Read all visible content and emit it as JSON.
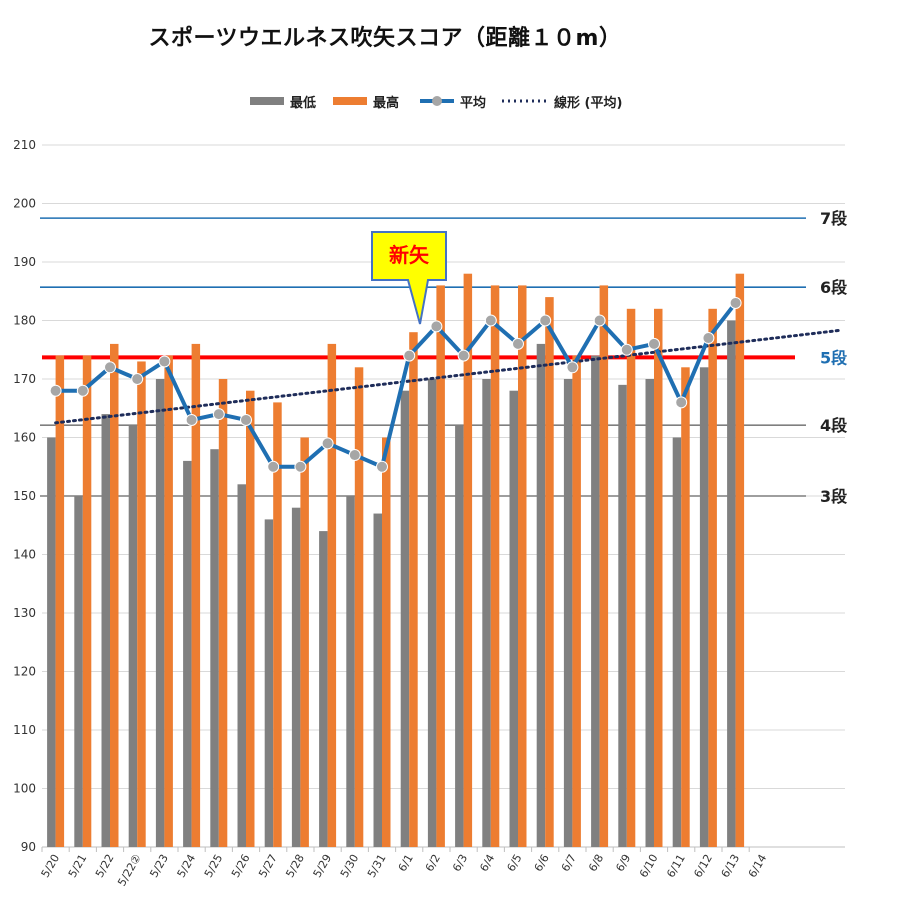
{
  "chart_data": {
    "type": "bar",
    "title": "スポーツウエルネス吹矢スコア（距離１０m）",
    "categories": [
      "5/20",
      "5/21",
      "5/22",
      "5/22②",
      "5/23",
      "5/24",
      "5/25",
      "5/26",
      "5/27",
      "5/28",
      "5/29",
      "5/30",
      "5/31",
      "6/1",
      "6/2",
      "6/3",
      "6/4",
      "6/5",
      "6/6",
      "6/7",
      "6/8",
      "6/9",
      "6/10",
      "6/11",
      "6/12",
      "6/13",
      "6/14"
    ],
    "ylim": [
      90,
      210
    ],
    "yticks": [
      90,
      100,
      110,
      120,
      130,
      140,
      150,
      160,
      170,
      180,
      190,
      200,
      210
    ],
    "grid": true,
    "legend_position": "top",
    "series": [
      {
        "name": "最低",
        "kind": "bar",
        "color": "#808080",
        "values": [
          160,
          150,
          164,
          162,
          170,
          156,
          158,
          152,
          146,
          148,
          144,
          150,
          147,
          168,
          170,
          162,
          170,
          168,
          176,
          170,
          174,
          169,
          170,
          160,
          172,
          180,
          null
        ]
      },
      {
        "name": "最高",
        "kind": "bar",
        "color": "#ED7D31",
        "values": [
          174,
          174,
          176,
          173,
          174,
          176,
          170,
          168,
          166,
          160,
          176,
          172,
          160,
          178,
          186,
          188,
          186,
          186,
          184,
          174,
          186,
          182,
          182,
          172,
          182,
          188,
          null
        ]
      },
      {
        "name": "平均",
        "kind": "line",
        "color": "#1F6FB2",
        "marker_color": "#A6A6A6",
        "values": [
          168,
          168,
          172,
          170,
          173,
          163,
          164,
          163,
          155,
          155,
          159,
          157,
          155,
          174,
          179,
          174,
          180,
          176,
          180,
          172,
          180,
          175,
          176,
          166,
          177,
          183,
          null
        ]
      },
      {
        "name": "線形 (平均)",
        "kind": "trendline",
        "color": "#1F2D5A",
        "style": "dotted",
        "from": [
          0,
          162.5
        ],
        "to": [
          28.8,
          178.3
        ]
      }
    ],
    "reference_lines": [
      {
        "label": "7段",
        "value": 197.5,
        "color": "#1F6FB2",
        "label_color": "#222222"
      },
      {
        "label": "6段",
        "value": 185.7,
        "color": "#1F6FB2",
        "label_color": "#222222"
      },
      {
        "label": "5段",
        "value": 173.7,
        "color": "#FF0000",
        "label_color": "#1F6FB2"
      },
      {
        "label": "4段",
        "value": 162.1,
        "color": "#7F7F7F",
        "label_color": "#222222"
      },
      {
        "label": "3段",
        "value": 150.0,
        "color": "#7F7F7F",
        "label_color": "#222222"
      }
    ],
    "annotations": [
      {
        "text": "新矢",
        "category_index": 13,
        "text_color": "#FF0000",
        "box_color": "#FFFF00"
      }
    ]
  }
}
